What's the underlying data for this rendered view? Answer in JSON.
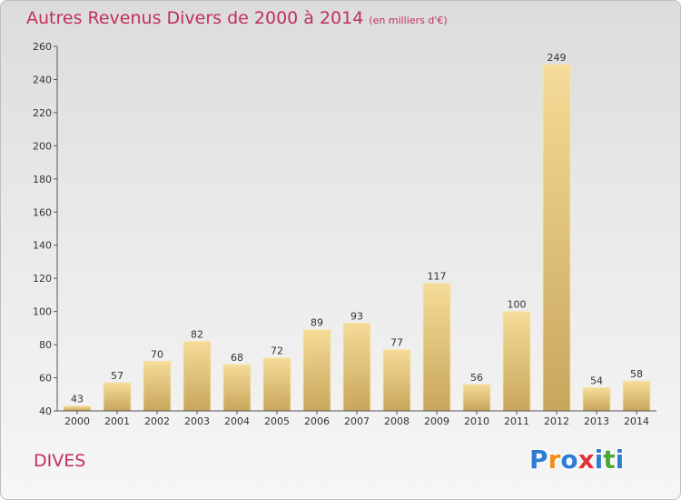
{
  "title": "Autres Revenus Divers de 2000 à 2014",
  "subtitle": "(en milliers d'€)",
  "commune": "DIVES",
  "logo": {
    "text": "Proxiti",
    "letters": [
      "P",
      "r",
      "o",
      "x",
      "i",
      "t",
      "i"
    ],
    "colors": [
      "#2e7dd1",
      "#f28c1e",
      "#2e7dd1",
      "#e0333c",
      "#2e7dd1",
      "#49a83a",
      "#2e7dd1"
    ]
  },
  "colors": {
    "title": "#c0305a",
    "bar_light": "#f5dc98",
    "bar_dark": "#c8a65c",
    "axis": "#555555"
  },
  "chart_data": {
    "type": "bar",
    "title": "Autres Revenus Divers de 2000 à 2014",
    "subtitle": "(en milliers d'€)",
    "xlabel": "",
    "ylabel": "",
    "categories": [
      "2000",
      "2001",
      "2002",
      "2003",
      "2004",
      "2005",
      "2006",
      "2007",
      "2008",
      "2009",
      "2010",
      "2011",
      "2012",
      "2013",
      "2014"
    ],
    "values": [
      43,
      57,
      70,
      82,
      68,
      72,
      89,
      93,
      77,
      117,
      56,
      100,
      249,
      54,
      58
    ],
    "ylim": [
      40,
      260
    ],
    "yticks": [
      40,
      60,
      80,
      100,
      120,
      140,
      160,
      180,
      200,
      220,
      240,
      260
    ],
    "grid": false,
    "legend": "none"
  }
}
